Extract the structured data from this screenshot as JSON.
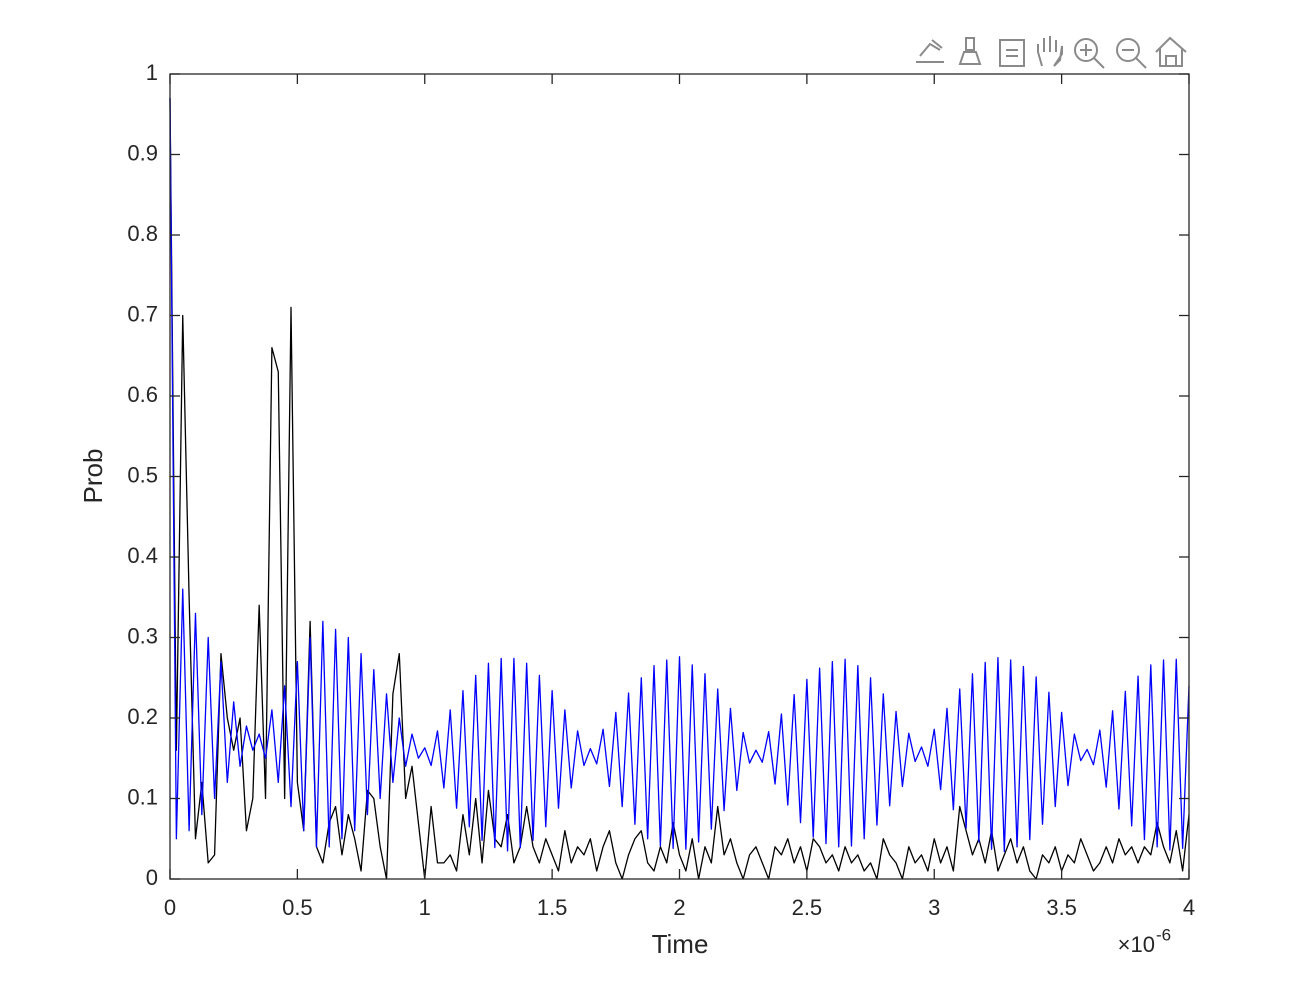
{
  "chart_data": {
    "type": "line",
    "x_label": "Time",
    "y_label": "Prob",
    "x_multiplier": {
      "base": "×10",
      "exponent": "-6"
    },
    "xlim": [
      0,
      4
    ],
    "xticks": [
      0,
      0.5,
      1,
      1.5,
      2,
      2.5,
      3,
      3.5,
      4
    ],
    "ylim": [
      0,
      1
    ],
    "yticks": [
      0,
      0.1,
      0.2,
      0.3,
      0.4,
      0.5,
      0.6,
      0.7,
      0.8,
      0.9,
      1
    ],
    "grid": false,
    "x": [
      0,
      0.025,
      0.05,
      0.075,
      0.1,
      0.125,
      0.15,
      0.175,
      0.2,
      0.225,
      0.25,
      0.275,
      0.3,
      0.325,
      0.35,
      0.375,
      0.4,
      0.425,
      0.45,
      0.475,
      0.5,
      0.525,
      0.55,
      0.575,
      0.6,
      0.625,
      0.65,
      0.675,
      0.7,
      0.725,
      0.75,
      0.775,
      0.8,
      0.825,
      0.85,
      0.875,
      0.9,
      0.925,
      0.95,
      0.975,
      1,
      1.025,
      1.05,
      1.075,
      1.1,
      1.125,
      1.15,
      1.175,
      1.2,
      1.225,
      1.25,
      1.275,
      1.3,
      1.325,
      1.35,
      1.375,
      1.4,
      1.425,
      1.45,
      1.475,
      1.5,
      1.525,
      1.55,
      1.575,
      1.6,
      1.625,
      1.65,
      1.675,
      1.7,
      1.725,
      1.75,
      1.775,
      1.8,
      1.825,
      1.85,
      1.875,
      1.9,
      1.925,
      1.95,
      1.975,
      2,
      2.025,
      2.05,
      2.075,
      2.1,
      2.125,
      2.15,
      2.175,
      2.2,
      2.225,
      2.25,
      2.275,
      2.3,
      2.325,
      2.35,
      2.375,
      2.4,
      2.425,
      2.45,
      2.475,
      2.5,
      2.525,
      2.55,
      2.575,
      2.6,
      2.625,
      2.65,
      2.675,
      2.7,
      2.725,
      2.75,
      2.775,
      2.8,
      2.825,
      2.85,
      2.875,
      2.9,
      2.925,
      2.95,
      2.975,
      3,
      3.025,
      3.05,
      3.075,
      3.1,
      3.125,
      3.15,
      3.175,
      3.2,
      3.225,
      3.25,
      3.275,
      3.3,
      3.325,
      3.35,
      3.375,
      3.4,
      3.425,
      3.45,
      3.475,
      3.5,
      3.525,
      3.55,
      3.575,
      3.6,
      3.625,
      3.65,
      3.675,
      3.7,
      3.725,
      3.75,
      3.775,
      3.8,
      3.825,
      3.85,
      3.875,
      3.9,
      3.925,
      3.95,
      3.975,
      4
    ],
    "series": [
      {
        "color": "#000000",
        "values": [
          0.97,
          0.16,
          0.7,
          0.35,
          0.05,
          0.12,
          0.02,
          0.03,
          0.28,
          0.2,
          0.16,
          0.2,
          0.06,
          0.1,
          0.34,
          0.1,
          0.66,
          0.63,
          0.1,
          0.71,
          0.12,
          0.06,
          0.32,
          0.04,
          0.02,
          0.07,
          0.09,
          0.03,
          0.08,
          0.05,
          0.01,
          0.11,
          0.1,
          0.04,
          0.0,
          0.23,
          0.28,
          0.1,
          0.14,
          0.07,
          0.0,
          0.09,
          0.02,
          0.02,
          0.03,
          0.01,
          0.08,
          0.03,
          0.1,
          0.02,
          0.11,
          0.05,
          0.04,
          0.08,
          0.02,
          0.04,
          0.09,
          0.04,
          0.02,
          0.05,
          0.03,
          0.01,
          0.06,
          0.02,
          0.04,
          0.03,
          0.05,
          0.01,
          0.04,
          0.06,
          0.02,
          0.0,
          0.03,
          0.05,
          0.06,
          0.02,
          0.01,
          0.04,
          0.02,
          0.07,
          0.03,
          0.01,
          0.05,
          0.0,
          0.04,
          0.02,
          0.09,
          0.03,
          0.05,
          0.02,
          0.0,
          0.03,
          0.04,
          0.02,
          0.0,
          0.04,
          0.03,
          0.05,
          0.02,
          0.04,
          0.01,
          0.05,
          0.04,
          0.02,
          0.03,
          0.01,
          0.04,
          0.02,
          0.03,
          0.01,
          0.02,
          0.0,
          0.05,
          0.03,
          0.02,
          0.0,
          0.04,
          0.02,
          0.03,
          0.01,
          0.05,
          0.02,
          0.04,
          0.01,
          0.09,
          0.06,
          0.03,
          0.05,
          0.02,
          0.06,
          0.01,
          0.03,
          0.05,
          0.02,
          0.04,
          0.01,
          0.0,
          0.03,
          0.02,
          0.04,
          0.01,
          0.03,
          0.02,
          0.05,
          0.03,
          0.01,
          0.02,
          0.04,
          0.02,
          0.05,
          0.03,
          0.04,
          0.02,
          0.04,
          0.03,
          0.07,
          0.04,
          0.02,
          0.06,
          0.01,
          0.08
        ]
      },
      {
        "color": "#0000ff",
        "values": [
          0.97,
          0.05,
          0.36,
          0.06,
          0.33,
          0.08,
          0.3,
          0.1,
          0.27,
          0.12,
          0.22,
          0.14,
          0.19,
          0.16,
          0.18,
          0.15,
          0.21,
          0.12,
          0.24,
          0.09,
          0.27,
          0.06,
          0.3,
          0.04,
          0.32,
          0.04,
          0.31,
          0.05,
          0.3,
          0.06,
          0.28,
          0.08,
          0.26,
          0.1,
          0.23,
          0.12,
          0.2,
          0.14,
          0.18,
          0.15,
          0.163,
          0.141,
          0.184,
          0.113,
          0.21,
          0.088,
          0.234,
          0.065,
          0.253,
          0.048,
          0.268,
          0.039,
          0.274,
          0.035,
          0.274,
          0.039,
          0.268,
          0.048,
          0.253,
          0.065,
          0.234,
          0.088,
          0.21,
          0.113,
          0.184,
          0.141,
          0.162,
          0.143,
          0.186,
          0.115,
          0.207,
          0.09,
          0.231,
          0.068,
          0.25,
          0.05,
          0.265,
          0.041,
          0.272,
          0.038,
          0.276,
          0.037,
          0.266,
          0.046,
          0.255,
          0.062,
          0.236,
          0.085,
          0.212,
          0.11,
          0.182,
          0.144,
          0.16,
          0.145,
          0.183,
          0.118,
          0.205,
          0.092,
          0.229,
          0.07,
          0.248,
          0.052,
          0.262,
          0.044,
          0.27,
          0.04,
          0.273,
          0.041,
          0.265,
          0.05,
          0.25,
          0.067,
          0.23,
          0.091,
          0.208,
          0.115,
          0.181,
          0.146,
          0.164,
          0.14,
          0.186,
          0.111,
          0.212,
          0.086,
          0.236,
          0.063,
          0.255,
          0.046,
          0.269,
          0.037,
          0.275,
          0.034,
          0.272,
          0.04,
          0.264,
          0.049,
          0.251,
          0.068,
          0.232,
          0.09,
          0.207,
          0.116,
          0.18,
          0.147,
          0.161,
          0.142,
          0.185,
          0.114,
          0.209,
          0.087,
          0.233,
          0.066,
          0.252,
          0.049,
          0.266,
          0.04,
          0.272,
          0.036,
          0.273,
          0.038,
          0.24
        ]
      }
    ]
  }
}
